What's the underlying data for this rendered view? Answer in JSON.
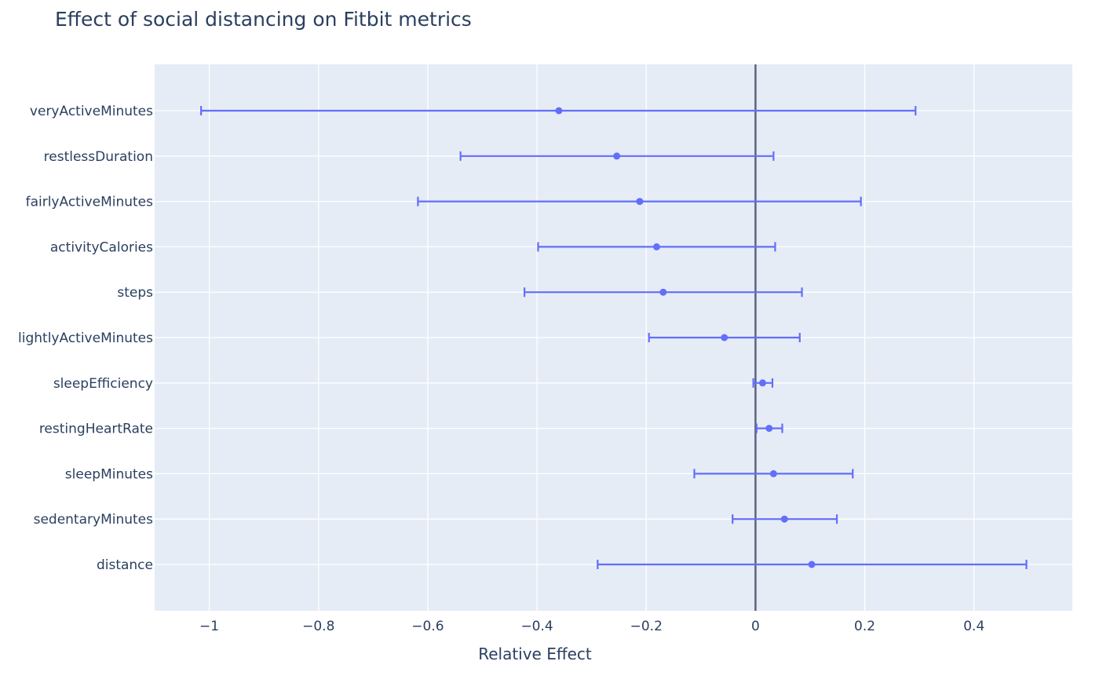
{
  "chart_data": {
    "type": "scatter",
    "title": "Effect of social distancing on Fitbit metrics",
    "xlabel": "Relative Effect",
    "ylabel": "",
    "xlim": [
      -1.1,
      0.58
    ],
    "x_ticks": [
      -1,
      -0.8,
      -0.6,
      -0.4,
      -0.2,
      0,
      0.2,
      0.4
    ],
    "x_tick_labels": [
      "−1",
      "−0.8",
      "−0.6",
      "−0.4",
      "−0.2",
      "0",
      "0.2",
      "0.4"
    ],
    "reference_line_x": 0,
    "grid": true,
    "colors": {
      "marker": "#636efa",
      "plot_bg": "#e5ecf6",
      "zero_line": "#5a6381",
      "text": "#2a3f5f"
    },
    "points": [
      {
        "metric": "veryActiveMinutes",
        "estimate": -0.36,
        "lower": -1.015,
        "upper": 0.293
      },
      {
        "metric": "restlessDuration",
        "estimate": -0.254,
        "lower": -0.54,
        "upper": 0.033
      },
      {
        "metric": "fairlyActiveMinutes",
        "estimate": -0.212,
        "lower": -0.618,
        "upper": 0.193
      },
      {
        "metric": "activityCalories",
        "estimate": -0.181,
        "lower": -0.398,
        "upper": 0.036
      },
      {
        "metric": "steps",
        "estimate": -0.169,
        "lower": -0.423,
        "upper": 0.085
      },
      {
        "metric": "lightlyActiveMinutes",
        "estimate": -0.057,
        "lower": -0.195,
        "upper": 0.081
      },
      {
        "metric": "sleepEfficiency",
        "estimate": 0.013,
        "lower": -0.004,
        "upper": 0.031
      },
      {
        "metric": "restingHeartRate",
        "estimate": 0.025,
        "lower": 0.002,
        "upper": 0.049
      },
      {
        "metric": "sleepMinutes",
        "estimate": 0.033,
        "lower": -0.112,
        "upper": 0.178
      },
      {
        "metric": "sedentaryMinutes",
        "estimate": 0.053,
        "lower": -0.042,
        "upper": 0.149
      },
      {
        "metric": "distance",
        "estimate": 0.103,
        "lower": -0.289,
        "upper": 0.496
      }
    ]
  }
}
